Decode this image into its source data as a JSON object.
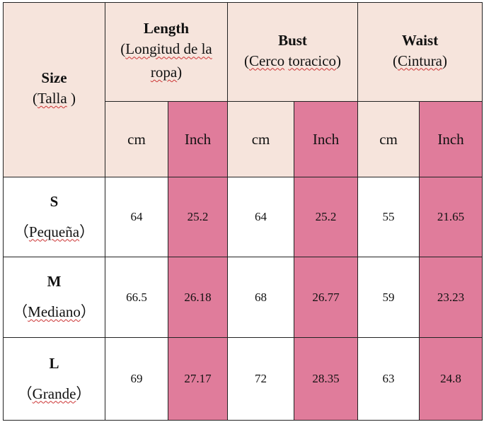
{
  "headers": {
    "size": {
      "title": "Size",
      "subtitle_open": "(",
      "subtitle": "Talla",
      "subtitle_close": " )"
    },
    "length": {
      "title": "Length",
      "subtitle_line1_open": "(",
      "subtitle_line1": "Longitud de la",
      "subtitle_line2": "ropa",
      "subtitle_line2_close": ")"
    },
    "bust": {
      "title": "Bust",
      "subtitle_open": "(",
      "subtitle_word1": "Cerco",
      "subtitle_space": " ",
      "subtitle_word2": "toracico",
      "subtitle_close": ")"
    },
    "waist": {
      "title": "Waist",
      "subtitle_open": "(",
      "subtitle": "Cintura",
      "subtitle_close": ")"
    }
  },
  "units": {
    "cm": "cm",
    "inch": "Inch"
  },
  "rows": [
    {
      "size": "S",
      "name_open": "（",
      "name": "Pequeña",
      "name_close": "）",
      "length_cm": "64",
      "length_in": "25.2",
      "bust_cm": "64",
      "bust_in": "25.2",
      "waist_cm": "55",
      "waist_in": "21.65"
    },
    {
      "size": "M",
      "name_open": "（",
      "name": "Mediano",
      "name_close": "）",
      "length_cm": "66.5",
      "length_in": "26.18",
      "bust_cm": "68",
      "bust_in": "26.77",
      "waist_cm": "59",
      "waist_in": "23.23"
    },
    {
      "size": "L",
      "name_open": "（",
      "name": "Grande",
      "name_close": "）",
      "length_cm": "69",
      "length_in": "27.17",
      "bust_cm": "72",
      "bust_in": "28.35",
      "waist_cm": "63",
      "waist_in": "24.8"
    }
  ],
  "colors": {
    "header_bg": "#f6e4dc",
    "inch_bg": "#e07c9b",
    "border": "#222222"
  }
}
